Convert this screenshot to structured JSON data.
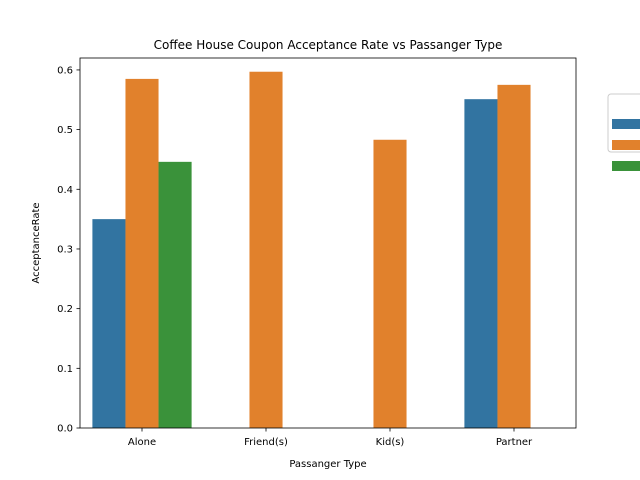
{
  "chart_data": {
    "type": "bar",
    "title": "Coffee House Coupon Acceptance Rate vs Passanger Type",
    "xlabel": "Passanger Type",
    "ylabel": "AcceptanceRate",
    "categories": [
      "Alone",
      "Friend(s)",
      "Kid(s)",
      "Partner"
    ],
    "ylim": [
      0,
      0.62
    ],
    "yticks": [
      "0.0",
      "0.1",
      "0.2",
      "0.3",
      "0.4",
      "0.5",
      "0.6"
    ],
    "grid": false,
    "legend_position": "upper right, outside plot",
    "series": [
      {
        "color": "#3274a1",
        "values": [
          0.35,
          null,
          null,
          0.551
        ]
      },
      {
        "color": "#e1812c",
        "values": [
          0.585,
          0.597,
          0.483,
          0.575
        ]
      },
      {
        "color": "#3a923a",
        "values": [
          0.446,
          null,
          null,
          null
        ]
      }
    ]
  }
}
